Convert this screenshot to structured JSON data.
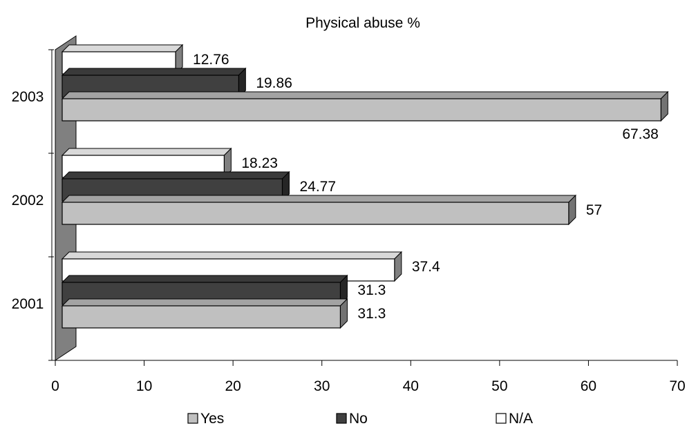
{
  "chart_data": {
    "type": "bar",
    "orientation": "horizontal",
    "title": "Physical abuse %",
    "xlabel": "",
    "ylabel": "",
    "categories": [
      "2001",
      "2002",
      "2003"
    ],
    "series": [
      {
        "name": "Yes",
        "values": [
          31.3,
          57,
          67.38
        ],
        "labels": [
          "31.3",
          "57",
          "67.38"
        ],
        "color": "#c0c0c0"
      },
      {
        "name": "No",
        "values": [
          31.3,
          24.77,
          19.86
        ],
        "labels": [
          "31.3",
          "24.77",
          "19.86"
        ],
        "color": "#404040"
      },
      {
        "name": "N/A",
        "values": [
          37.4,
          18.23,
          12.76
        ],
        "labels": [
          "37.4",
          "18.23",
          "12.76"
        ],
        "color": "#ffffff"
      }
    ],
    "xlim": [
      0,
      70
    ],
    "xticks": [
      "0",
      "10",
      "20",
      "30",
      "40",
      "50",
      "60",
      "70"
    ],
    "grid": false,
    "legend": "bottom",
    "style": "3d"
  }
}
